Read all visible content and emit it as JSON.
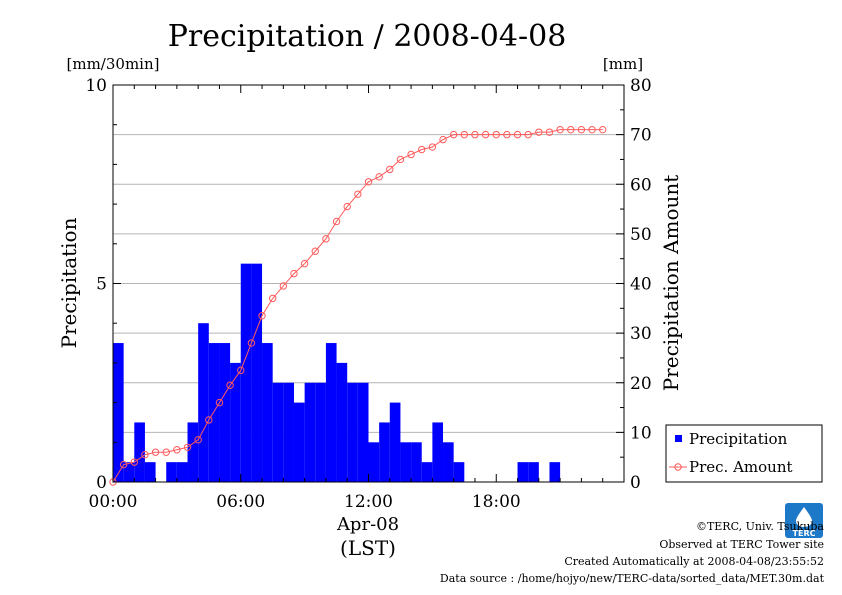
{
  "chart_data": {
    "type": "bar",
    "title": "Precipitation / 2008-04-08",
    "left_unit": "[mm/30min]",
    "right_unit": "[mm]",
    "ylabel": "Precipitation",
    "ylabel_right": "Precipitation Amount",
    "xlabel_date": "Apr-08",
    "xlabel_tz": "(LST)",
    "ylim": [
      0,
      10
    ],
    "ylim_right": [
      0,
      80
    ],
    "xlim_hours": [
      0,
      24
    ],
    "y_ticks": [
      "0",
      "5",
      "10"
    ],
    "y_ticks_right": [
      "0",
      "10",
      "20",
      "30",
      "40",
      "50",
      "60",
      "70",
      "80"
    ],
    "x_ticks": [
      "00:00",
      "06:00",
      "12:00",
      "18:00"
    ],
    "grid": true,
    "legend_position": "bottom-right",
    "colors": {
      "bars": "#0000ff",
      "line": "#ff5a5a",
      "grid": "#b4b4b4"
    },
    "series": [
      {
        "name": "Precipitation",
        "kind": "bar",
        "axis": "left",
        "interval_hours": 0.5,
        "values": [
          3.5,
          0.5,
          1.5,
          0.5,
          0,
          0.5,
          0.5,
          1.5,
          4.0,
          3.5,
          3.5,
          3.0,
          5.5,
          5.5,
          3.5,
          2.5,
          2.5,
          2.0,
          2.5,
          2.5,
          3.5,
          3.0,
          2.5,
          2.5,
          1.0,
          1.5,
          2.0,
          1.0,
          1.0,
          0.5,
          1.5,
          1.0,
          0.5,
          0,
          0,
          0,
          0,
          0,
          0.5,
          0.5,
          0,
          0.5,
          0,
          0,
          0,
          0,
          0,
          0
        ]
      },
      {
        "name": "Prec. Amount",
        "kind": "line",
        "axis": "right",
        "x": [
          0,
          0.5,
          1,
          1.5,
          2,
          2.5,
          3,
          3.5,
          4,
          4.5,
          5,
          5.5,
          6,
          6.5,
          7,
          7.5,
          8,
          8.5,
          9,
          9.5,
          10,
          10.5,
          11,
          11.5,
          12,
          12.5,
          13,
          13.5,
          14,
          14.5,
          15,
          15.5,
          16,
          16.5,
          17,
          17.5,
          18,
          18.5,
          19,
          19.5,
          20,
          20.5,
          21,
          21.5,
          22,
          22.5,
          23
        ],
        "values": [
          0,
          3.5,
          4,
          5.5,
          6,
          6,
          6.5,
          7,
          8.5,
          12.5,
          16,
          19.5,
          22.5,
          28,
          33.5,
          37,
          39.5,
          42,
          44,
          46.5,
          49,
          52.5,
          55.5,
          58,
          60.5,
          61.5,
          63,
          65,
          66,
          67,
          67.5,
          69,
          70,
          70,
          70,
          70,
          70,
          70,
          70,
          70,
          70.5,
          70.5,
          71,
          71,
          71,
          71,
          71
        ]
      }
    ]
  },
  "credits": {
    "copyright": "©TERC, Univ. Tsukuba",
    "site": "Observed at TERC Tower site",
    "created": "Created Automatically at 2008-04-08/23:55:52",
    "source": "Data source : /home/hojyo/new/TERC-data/sorted_data/MET.30m.dat",
    "logo_text": "TERC"
  }
}
